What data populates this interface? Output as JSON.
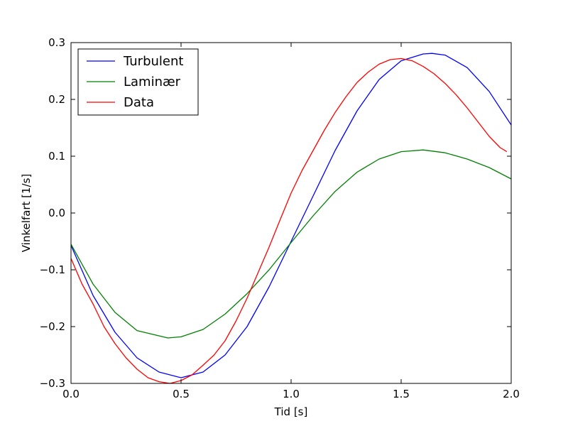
{
  "chart_data": {
    "type": "line",
    "title": "",
    "xlabel": "Tid [s]",
    "ylabel": "Vinkelfart [1/s]",
    "xlim": [
      0.0,
      2.0
    ],
    "ylim": [
      -0.3,
      0.3
    ],
    "xticks": [
      0.0,
      0.5,
      1.0,
      1.5,
      2.0
    ],
    "xtick_labels": [
      "0.0",
      "0.5",
      "1.0",
      "1.5",
      "2.0"
    ],
    "yticks": [
      -0.3,
      -0.2,
      -0.1,
      0.0,
      0.1,
      0.2,
      0.3
    ],
    "ytick_labels": [
      "−0.3",
      "−0.2",
      "−0.1",
      "0.0",
      "0.1",
      "0.2",
      "0.3"
    ],
    "grid": false,
    "legend_position": "top-left",
    "series": [
      {
        "name": "Turbulent",
        "color": "#0000ff",
        "x": [
          0.0,
          0.1,
          0.2,
          0.3,
          0.4,
          0.5,
          0.6,
          0.7,
          0.8,
          0.9,
          1.0,
          1.1,
          1.2,
          1.3,
          1.4,
          1.5,
          1.6,
          1.64,
          1.7,
          1.8,
          1.9,
          2.0
        ],
        "y": [
          -0.057,
          -0.145,
          -0.21,
          -0.255,
          -0.28,
          -0.29,
          -0.28,
          -0.25,
          -0.2,
          -0.13,
          -0.05,
          0.03,
          0.11,
          0.18,
          0.235,
          0.268,
          0.28,
          0.281,
          0.278,
          0.256,
          0.214,
          0.155
        ]
      },
      {
        "name": "Laminær",
        "color": "#008000",
        "x": [
          0.0,
          0.1,
          0.2,
          0.3,
          0.44,
          0.5,
          0.6,
          0.7,
          0.8,
          0.9,
          1.0,
          1.1,
          1.2,
          1.3,
          1.4,
          1.5,
          1.6,
          1.7,
          1.8,
          1.9,
          2.0
        ],
        "y": [
          -0.055,
          -0.125,
          -0.175,
          -0.207,
          -0.22,
          -0.218,
          -0.205,
          -0.178,
          -0.142,
          -0.1,
          -0.052,
          -0.005,
          0.038,
          0.072,
          0.095,
          0.108,
          0.111,
          0.106,
          0.095,
          0.08,
          0.06
        ]
      },
      {
        "name": "Data",
        "color": "#ff0000",
        "x": [
          0.0,
          0.05,
          0.1,
          0.15,
          0.2,
          0.25,
          0.3,
          0.35,
          0.4,
          0.45,
          0.5,
          0.55,
          0.6,
          0.65,
          0.7,
          0.75,
          0.8,
          0.85,
          0.9,
          0.95,
          1.0,
          1.05,
          1.1,
          1.15,
          1.2,
          1.25,
          1.3,
          1.35,
          1.4,
          1.45,
          1.5,
          1.55,
          1.6,
          1.65,
          1.7,
          1.75,
          1.8,
          1.85,
          1.9,
          1.95,
          1.98
        ],
        "y": [
          -0.08,
          -0.125,
          -0.16,
          -0.2,
          -0.23,
          -0.255,
          -0.275,
          -0.29,
          -0.297,
          -0.3,
          -0.295,
          -0.285,
          -0.268,
          -0.25,
          -0.225,
          -0.19,
          -0.15,
          -0.105,
          -0.06,
          -0.012,
          0.035,
          0.075,
          0.11,
          0.145,
          0.177,
          0.205,
          0.23,
          0.248,
          0.262,
          0.27,
          0.272,
          0.268,
          0.258,
          0.245,
          0.228,
          0.208,
          0.185,
          0.16,
          0.135,
          0.115,
          0.108
        ]
      }
    ]
  }
}
